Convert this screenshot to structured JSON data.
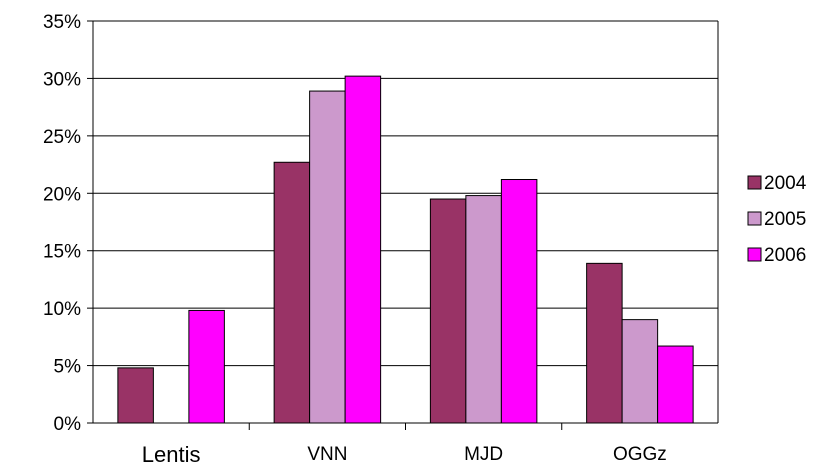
{
  "chart_data": {
    "type": "bar",
    "title": "",
    "xlabel": "",
    "ylabel": "",
    "categories": [
      "Lentis",
      "VNN",
      "MJD",
      "OGGz"
    ],
    "series": [
      {
        "name": "2004",
        "color": "#993366",
        "values": [
          4.8,
          22.7,
          19.5,
          13.9
        ]
      },
      {
        "name": "2005",
        "color": "#CC99CC",
        "values": [
          null,
          28.9,
          19.8,
          9.0
        ]
      },
      {
        "name": "2006",
        "color": "#FF00FF",
        "values": [
          9.8,
          30.2,
          21.2,
          6.7
        ]
      }
    ],
    "ylim": [
      0,
      35
    ],
    "yticks": [
      "0%",
      "5%",
      "10%",
      "15%",
      "20%",
      "25%",
      "30%",
      "35%"
    ],
    "grid": true,
    "legend_position": "right"
  }
}
